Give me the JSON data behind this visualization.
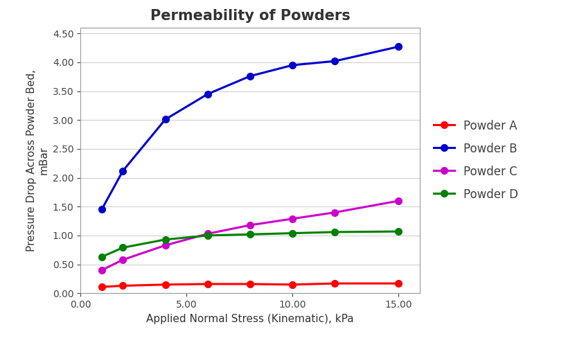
{
  "title": "Permeability of Powders",
  "xlabel": "Applied Normal Stress (Kinematic), kPa",
  "ylabel": "Pressure Drop Across Powder Bed,\nmBar",
  "xlim": [
    0,
    16
  ],
  "ylim": [
    0,
    4.6
  ],
  "yticks": [
    0.0,
    0.5,
    1.0,
    1.5,
    2.0,
    2.5,
    3.0,
    3.5,
    4.0,
    4.5
  ],
  "series": [
    {
      "label": "Powder A",
      "color": "#ff0000",
      "x": [
        1,
        2,
        4,
        6,
        8,
        10,
        12,
        15
      ],
      "y": [
        0.11,
        0.13,
        0.15,
        0.16,
        0.16,
        0.15,
        0.17,
        0.17
      ]
    },
    {
      "label": "Powder B",
      "color": "#0000cd",
      "x": [
        1,
        2,
        4,
        6,
        8,
        10,
        12,
        15
      ],
      "y": [
        1.45,
        2.12,
        3.01,
        3.45,
        3.76,
        3.95,
        4.02,
        4.27
      ]
    },
    {
      "label": "Powder C",
      "color": "#cc00cc",
      "x": [
        1,
        2,
        4,
        6,
        8,
        10,
        12,
        15
      ],
      "y": [
        0.4,
        0.58,
        0.83,
        1.03,
        1.18,
        1.29,
        1.4,
        1.6
      ]
    },
    {
      "label": "Powder D",
      "color": "#008000",
      "x": [
        1,
        2,
        4,
        6,
        8,
        10,
        12,
        15
      ],
      "y": [
        0.63,
        0.79,
        0.93,
        1.0,
        1.02,
        1.04,
        1.06,
        1.07
      ]
    }
  ],
  "background_color": "#ffffff",
  "plot_bg_color": "#ffffff",
  "title_fontsize": 15,
  "axis_label_fontsize": 11,
  "tick_fontsize": 10,
  "legend_fontsize": 12,
  "legend_text_color": "#404040"
}
